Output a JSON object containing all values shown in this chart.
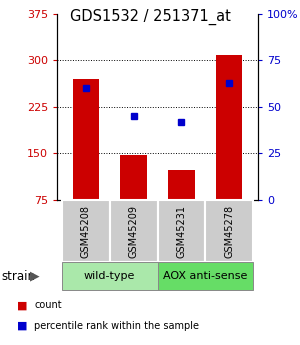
{
  "title": "GDS1532 / 251371_at",
  "samples": [
    "GSM45208",
    "GSM45209",
    "GSM45231",
    "GSM45278"
  ],
  "bar_values": [
    270,
    148,
    123,
    308
  ],
  "blue_dot_values": [
    60,
    45,
    42,
    63
  ],
  "bar_color": "#cc0000",
  "dot_color": "#0000cc",
  "ylim_left": [
    75,
    375
  ],
  "ylim_right": [
    0,
    100
  ],
  "yticks_left": [
    75,
    150,
    225,
    300,
    375
  ],
  "yticks_right": [
    0,
    25,
    50,
    75,
    100
  ],
  "grid_values": [
    150,
    225,
    300
  ],
  "groups": [
    {
      "label": "wild-type",
      "indices": [
        0,
        1
      ],
      "color": "#aae8aa"
    },
    {
      "label": "AOX anti-sense",
      "indices": [
        2,
        3
      ],
      "color": "#66dd66"
    }
  ],
  "strain_label": "strain",
  "legend_items": [
    {
      "color": "#cc0000",
      "label": "count"
    },
    {
      "color": "#0000cc",
      "label": "percentile rank within the sample"
    }
  ],
  "bar_width": 0.55,
  "sample_box_color": "#cccccc",
  "background_color": "#ffffff"
}
